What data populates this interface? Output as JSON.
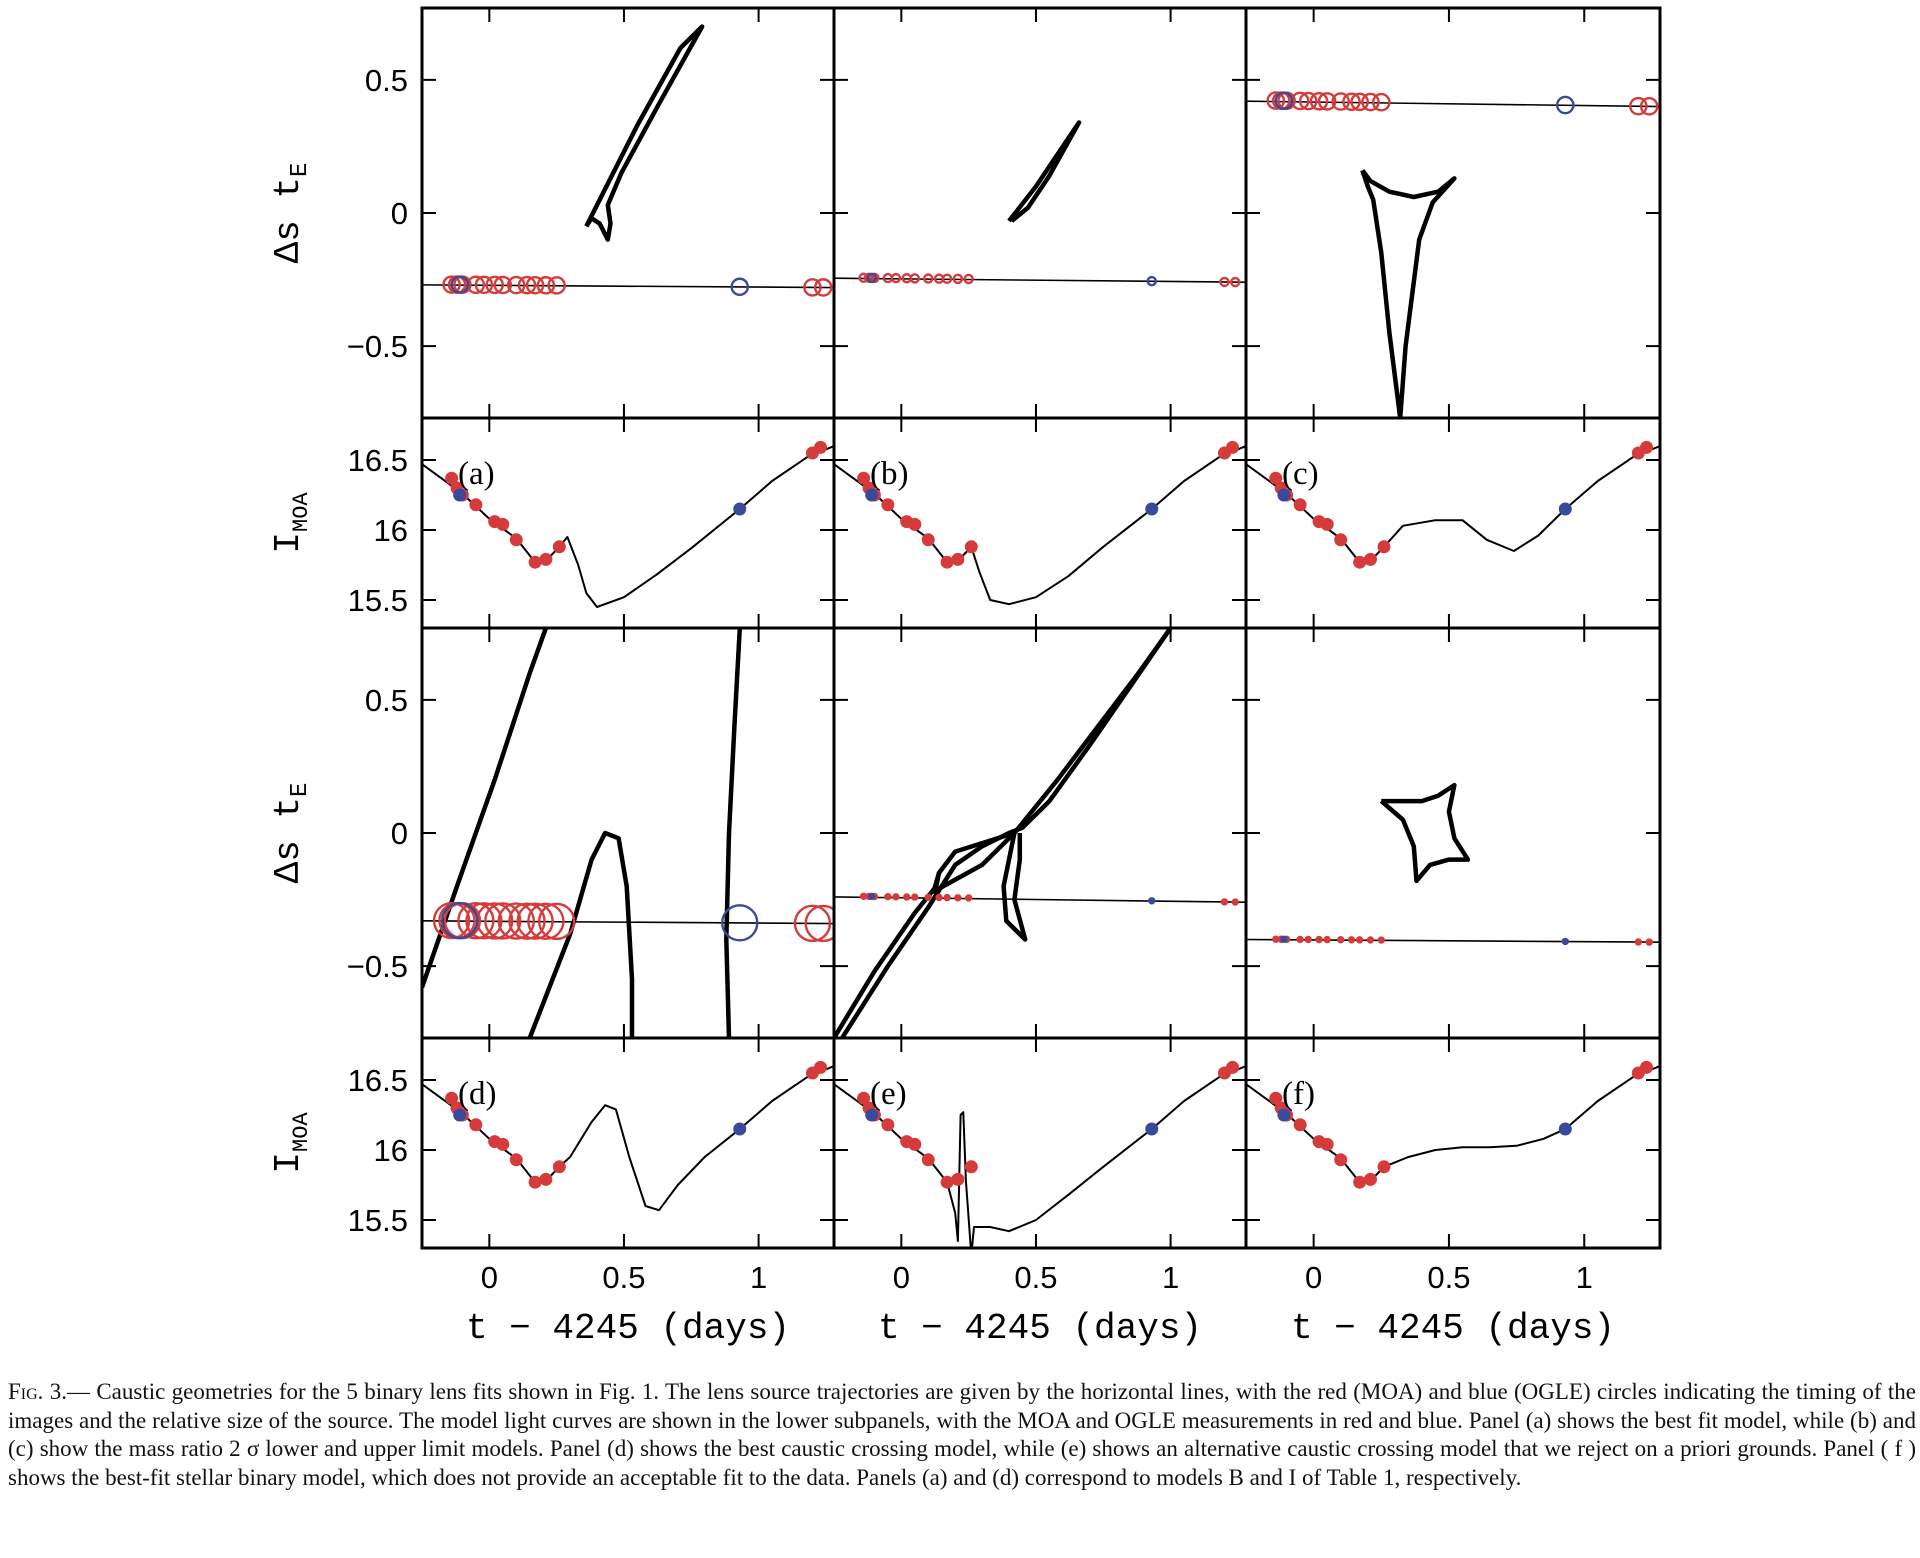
{
  "caption": {
    "fig_label": "Fig. 3.",
    "text": "— Caustic geometries for the 5 binary lens fits shown in Fig. 1. The lens source trajectories are given by the horizontal lines, with the red (MOA) and blue (OGLE) circles indicating the timing of the images and the relative size of the source. The model light curves are shown in the lower subpanels, with the MOA and OGLE measurements in red and blue. Panel (a) shows the best fit model, while (b) and (c) show the mass ratio 2 σ lower and upper limit models. Panel (d) shows the best caustic crossing model, while (e) shows an alternative caustic crossing model that we reject on a priori grounds. Panel ( f ) shows the best-fit stellar binary model, which does not provide an acceptable fit to the data. Panels (a) and (d) correspond to models B and I of Table 1, respectively."
  },
  "colors": {
    "moa": "#d63b3b",
    "ogle": "#3a4a9a",
    "ink": "#000000"
  },
  "chart_data": {
    "type": "scatter",
    "xlabel": "t − 4245 (days)",
    "xlim": [
      -0.25,
      1.28
    ],
    "x_ticks": [
      "0",
      "0.5",
      "1"
    ],
    "x_tick_values": [
      0,
      0.5,
      1
    ],
    "caustic_ylabel": "Δs t_E",
    "caustic_ylim": [
      -0.77,
      0.77
    ],
    "caustic_y_ticks": [
      "0.5",
      "0",
      "−0.5"
    ],
    "caustic_y_tick_values": [
      0.5,
      0,
      -0.5
    ],
    "lightcurve_ylabel": "I_MOA",
    "lightcurve_ylim": [
      16.8,
      15.3
    ],
    "lightcurve_y_ticks": [
      "15.5",
      "16",
      "16.5"
    ],
    "lightcurve_y_tick_values": [
      15.5,
      16,
      16.5
    ],
    "moa_times": [
      -0.14,
      -0.12,
      -0.1,
      -0.05,
      -0.02,
      0.02,
      0.05,
      0.1,
      0.14,
      0.17,
      0.21,
      0.25,
      1.2,
      1.24
    ],
    "ogle_times": [
      -0.11,
      0.93
    ],
    "lightcurve_points": {
      "moa": [
        [
          -0.14,
          16.37
        ],
        [
          -0.12,
          16.3
        ],
        [
          -0.1,
          16.25
        ],
        [
          -0.05,
          16.18
        ],
        [
          0.02,
          16.06
        ],
        [
          0.05,
          16.04
        ],
        [
          0.1,
          15.93
        ],
        [
          0.17,
          15.77
        ],
        [
          0.21,
          15.79
        ],
        [
          0.26,
          15.88
        ],
        [
          1.2,
          16.55
        ],
        [
          1.23,
          16.59
        ]
      ],
      "ogle": [
        [
          -0.11,
          16.25
        ],
        [
          0.93,
          16.15
        ]
      ]
    },
    "panels": [
      {
        "label": "(a)",
        "circle_radius": 0.03,
        "trajectory": [
          0.0,
          -0.27,
          1.28,
          -0.28
        ],
        "caustic": [
          [
            0.36,
            -0.05
          ],
          [
            0.42,
            0.07
          ],
          [
            0.55,
            0.33
          ],
          [
            0.71,
            0.62
          ],
          [
            0.79,
            0.7
          ],
          [
            0.63,
            0.41
          ],
          [
            0.49,
            0.15
          ],
          [
            0.44,
            0.03
          ],
          [
            0.45,
            -0.04
          ],
          [
            0.44,
            -0.1
          ],
          [
            0.41,
            -0.04
          ],
          [
            0.38,
            -0.02
          ],
          [
            0.36,
            -0.05
          ]
        ],
        "lightcurve": [
          [
            -0.25,
            16.47
          ],
          [
            -0.1,
            16.26
          ],
          [
            0.0,
            16.08
          ],
          [
            0.1,
            15.94
          ],
          [
            0.17,
            15.77
          ],
          [
            0.22,
            15.8
          ],
          [
            0.26,
            15.88
          ],
          [
            0.29,
            15.95
          ],
          [
            0.33,
            15.75
          ],
          [
            0.36,
            15.55
          ],
          [
            0.4,
            15.45
          ],
          [
            0.5,
            15.52
          ],
          [
            0.62,
            15.68
          ],
          [
            0.75,
            15.87
          ],
          [
            0.93,
            16.15
          ],
          [
            1.05,
            16.35
          ],
          [
            1.18,
            16.52
          ],
          [
            1.28,
            16.6
          ]
        ]
      },
      {
        "label": "(b)",
        "circle_radius": 0.015,
        "trajectory": [
          0.0,
          -0.245,
          1.28,
          -0.26
        ],
        "caustic": [
          [
            0.4,
            -0.03
          ],
          [
            0.5,
            0.1
          ],
          [
            0.58,
            0.22
          ],
          [
            0.66,
            0.34
          ],
          [
            0.55,
            0.14
          ],
          [
            0.47,
            0.02
          ],
          [
            0.41,
            -0.03
          ]
        ],
        "lightcurve": [
          [
            -0.25,
            16.47
          ],
          [
            -0.1,
            16.26
          ],
          [
            0.0,
            16.08
          ],
          [
            0.1,
            15.94
          ],
          [
            0.17,
            15.77
          ],
          [
            0.22,
            15.8
          ],
          [
            0.26,
            15.88
          ],
          [
            0.29,
            15.7
          ],
          [
            0.33,
            15.5
          ],
          [
            0.4,
            15.47
          ],
          [
            0.5,
            15.52
          ],
          [
            0.62,
            15.67
          ],
          [
            0.75,
            15.88
          ],
          [
            0.93,
            16.15
          ],
          [
            1.05,
            16.35
          ],
          [
            1.18,
            16.52
          ],
          [
            1.28,
            16.6
          ]
        ]
      },
      {
        "label": "(c)",
        "circle_radius": 0.03,
        "trajectory": [
          0.0,
          0.42,
          1.28,
          0.4
        ],
        "caustic": [
          [
            0.18,
            0.16
          ],
          [
            0.2,
            0.1
          ],
          [
            0.22,
            0.05
          ],
          [
            0.25,
            -0.15
          ],
          [
            0.28,
            -0.45
          ],
          [
            0.32,
            -0.77
          ],
          [
            0.34,
            -0.5
          ],
          [
            0.39,
            -0.1
          ],
          [
            0.44,
            0.04
          ],
          [
            0.52,
            0.13
          ],
          [
            0.46,
            0.08
          ],
          [
            0.37,
            0.06
          ],
          [
            0.28,
            0.08
          ],
          [
            0.21,
            0.12
          ],
          [
            0.18,
            0.16
          ]
        ],
        "lightcurve": [
          [
            -0.25,
            16.47
          ],
          [
            -0.1,
            16.26
          ],
          [
            0.0,
            16.08
          ],
          [
            0.1,
            15.94
          ],
          [
            0.17,
            15.77
          ],
          [
            0.22,
            15.8
          ],
          [
            0.26,
            15.88
          ],
          [
            0.33,
            16.03
          ],
          [
            0.45,
            16.07
          ],
          [
            0.55,
            16.07
          ],
          [
            0.64,
            15.93
          ],
          [
            0.74,
            15.85
          ],
          [
            0.83,
            15.96
          ],
          [
            0.93,
            16.15
          ],
          [
            1.05,
            16.35
          ],
          [
            1.18,
            16.52
          ],
          [
            1.28,
            16.6
          ]
        ]
      },
      {
        "label": "(d)",
        "circle_radius": 0.065,
        "trajectory": [
          0.0,
          -0.33,
          1.28,
          -0.34
        ],
        "caustic": [
          [
            -0.25,
            -0.58
          ],
          [
            -0.12,
            -0.2
          ],
          [
            0.02,
            0.2
          ],
          [
            0.15,
            0.6
          ],
          [
            0.21,
            0.77
          ]
        ],
        "caustic_extra": [
          [
            [
              0.15,
              -0.77
            ],
            [
              0.3,
              -0.38
            ],
            [
              0.38,
              -0.1
            ],
            [
              0.43,
              0.0
            ],
            [
              0.48,
              -0.02
            ],
            [
              0.51,
              -0.2
            ],
            [
              0.53,
              -0.55
            ],
            [
              0.53,
              -0.77
            ]
          ],
          [
            [
              0.89,
              -0.77
            ],
            [
              0.88,
              -0.4
            ],
            [
              0.89,
              0.0
            ],
            [
              0.91,
              0.4
            ],
            [
              0.93,
              0.77
            ]
          ]
        ],
        "lightcurve": [
          [
            -0.25,
            16.47
          ],
          [
            -0.1,
            16.26
          ],
          [
            0.0,
            16.08
          ],
          [
            0.1,
            15.94
          ],
          [
            0.17,
            15.77
          ],
          [
            0.22,
            15.8
          ],
          [
            0.26,
            15.88
          ],
          [
            0.3,
            15.95
          ],
          [
            0.38,
            16.2
          ],
          [
            0.43,
            16.32
          ],
          [
            0.47,
            16.29
          ],
          [
            0.52,
            15.95
          ],
          [
            0.58,
            15.6
          ],
          [
            0.63,
            15.57
          ],
          [
            0.7,
            15.75
          ],
          [
            0.8,
            15.95
          ],
          [
            0.93,
            16.15
          ],
          [
            1.05,
            16.35
          ],
          [
            1.18,
            16.52
          ],
          [
            1.28,
            16.6
          ]
        ]
      },
      {
        "label": "(e)",
        "circle_radius": 0.008,
        "trajectory": [
          0.0,
          -0.24,
          1.28,
          -0.26
        ],
        "caustic": [
          [
            -0.25,
            -0.77
          ],
          [
            -0.1,
            -0.52
          ],
          [
            0.05,
            -0.3
          ],
          [
            0.13,
            -0.2
          ],
          [
            0.14,
            -0.15
          ],
          [
            0.2,
            -0.07
          ],
          [
            0.42,
            0.0
          ],
          [
            0.58,
            0.2
          ],
          [
            0.73,
            0.4
          ],
          [
            0.88,
            0.6
          ],
          [
            1.0,
            0.77
          ]
        ],
        "caustic_extra": [
          [
            [
              -0.22,
              -0.77
            ],
            [
              -0.05,
              -0.5
            ],
            [
              0.1,
              -0.28
            ],
            [
              0.2,
              -0.12
            ],
            [
              0.3,
              -0.05
            ],
            [
              0.4,
              0.0
            ],
            [
              0.45,
              0.02
            ],
            [
              0.55,
              0.12
            ],
            [
              0.7,
              0.33
            ],
            [
              0.85,
              0.55
            ],
            [
              1.0,
              0.77
            ]
          ],
          [
            [
              0.14,
              -0.15
            ],
            [
              0.12,
              -0.22
            ],
            [
              0.3,
              -0.12
            ],
            [
              0.42,
              0.0
            ],
            [
              0.38,
              -0.2
            ],
            [
              0.39,
              -0.33
            ],
            [
              0.46,
              -0.4
            ],
            [
              0.42,
              -0.25
            ],
            [
              0.44,
              -0.1
            ],
            [
              0.44,
              0.0
            ]
          ]
        ],
        "lightcurve": [
          [
            -0.25,
            16.47
          ],
          [
            -0.1,
            16.26
          ],
          [
            0.0,
            16.08
          ],
          [
            0.1,
            15.94
          ],
          [
            0.17,
            15.77
          ],
          [
            0.2,
            15.55
          ],
          [
            0.21,
            15.35
          ],
          [
            0.22,
            16.25
          ],
          [
            0.23,
            16.27
          ],
          [
            0.24,
            15.78
          ],
          [
            0.26,
            15.25
          ],
          [
            0.27,
            15.45
          ],
          [
            0.33,
            15.45
          ],
          [
            0.4,
            15.42
          ],
          [
            0.5,
            15.5
          ],
          [
            0.62,
            15.68
          ],
          [
            0.75,
            15.88
          ],
          [
            0.93,
            16.15
          ],
          [
            1.05,
            16.35
          ],
          [
            1.18,
            16.52
          ],
          [
            1.28,
            16.6
          ]
        ]
      },
      {
        "label": "(f)",
        "circle_radius": 0.005,
        "trajectory": [
          0.0,
          -0.4,
          1.28,
          -0.41
        ],
        "caustic": [
          [
            0.25,
            0.12
          ],
          [
            0.33,
            0.05
          ],
          [
            0.37,
            -0.05
          ],
          [
            0.38,
            -0.18
          ],
          [
            0.43,
            -0.12
          ],
          [
            0.5,
            -0.1
          ],
          [
            0.57,
            -0.1
          ],
          [
            0.52,
            -0.02
          ],
          [
            0.5,
            0.08
          ],
          [
            0.52,
            0.18
          ],
          [
            0.46,
            0.14
          ],
          [
            0.4,
            0.12
          ],
          [
            0.32,
            0.12
          ],
          [
            0.25,
            0.12
          ]
        ],
        "lightcurve": [
          [
            -0.25,
            16.47
          ],
          [
            -0.1,
            16.26
          ],
          [
            0.0,
            16.08
          ],
          [
            0.1,
            15.94
          ],
          [
            0.17,
            15.77
          ],
          [
            0.22,
            15.8
          ],
          [
            0.26,
            15.88
          ],
          [
            0.35,
            15.95
          ],
          [
            0.45,
            16.0
          ],
          [
            0.55,
            16.02
          ],
          [
            0.65,
            16.02
          ],
          [
            0.75,
            16.03
          ],
          [
            0.85,
            16.08
          ],
          [
            0.93,
            16.15
          ],
          [
            1.05,
            16.35
          ],
          [
            1.18,
            16.52
          ],
          [
            1.28,
            16.6
          ]
        ]
      }
    ]
  }
}
